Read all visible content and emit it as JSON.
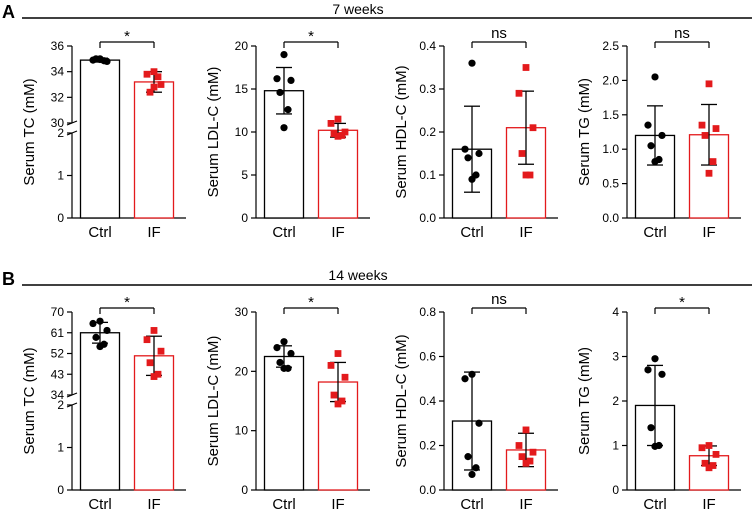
{
  "colors": {
    "ctrl": "#000000",
    "if": "#e31a1c",
    "axis": "#000000",
    "bar_fill": "#ffffff"
  },
  "panels": [
    {
      "letter": "A",
      "title": "7 weeks"
    },
    {
      "letter": "B",
      "title": "14 weeks"
    }
  ],
  "chart_data": [
    {
      "type": "bar",
      "panel": "A",
      "title": "Serum TC (7 weeks)",
      "ylabel": "Serum TC (mM)",
      "categories": [
        "Ctrl",
        "IF"
      ],
      "broken_axis": true,
      "lower_range": [
        0,
        2
      ],
      "lower_ticks": [
        0,
        1,
        2
      ],
      "upper_range": [
        30,
        36
      ],
      "upper_ticks": [
        30,
        32,
        34,
        36
      ],
      "means": [
        34.9,
        33.2
      ],
      "sd": [
        0.15,
        0.8
      ],
      "points": [
        [
          35.0,
          34.9,
          34.8,
          35.0,
          34.85,
          34.95
        ],
        [
          34.0,
          33.8,
          33.0,
          32.4,
          33.6,
          32.8
        ]
      ],
      "significance": "*"
    },
    {
      "type": "bar",
      "panel": "A",
      "title": "Serum LDL-C (7 weeks)",
      "ylabel": "Serum LDL-C (mM)",
      "categories": [
        "Ctrl",
        "IF"
      ],
      "ylim": [
        0,
        20
      ],
      "ticks": [
        0,
        5,
        10,
        15,
        20
      ],
      "means": [
        14.8,
        10.2
      ],
      "sd": [
        2.7,
        0.8
      ],
      "points": [
        [
          19.0,
          16.2,
          16.0,
          14.6,
          12.6,
          10.5
        ],
        [
          11.5,
          11.0,
          10.0,
          9.8,
          9.6,
          9.5
        ]
      ],
      "significance": "*"
    },
    {
      "type": "bar",
      "panel": "A",
      "title": "Serum HDL-C (7 weeks)",
      "ylabel": "Serum HDL-C (mM)",
      "categories": [
        "Ctrl",
        "IF"
      ],
      "ylim": [
        0,
        0.4
      ],
      "ticks": [
        0.0,
        0.1,
        0.2,
        0.3,
        0.4
      ],
      "means": [
        0.16,
        0.21
      ],
      "sd": [
        0.1,
        0.085
      ],
      "points": [
        [
          0.36,
          0.16,
          0.15,
          0.14,
          0.1,
          0.09
        ],
        [
          0.35,
          0.29,
          0.21,
          0.15,
          0.1,
          0.1
        ]
      ],
      "significance": "ns"
    },
    {
      "type": "bar",
      "panel": "A",
      "title": "Serum TG (7 weeks)",
      "ylabel": "Serum TG (mM)",
      "categories": [
        "Ctrl",
        "IF"
      ],
      "ylim": [
        0,
        2.5
      ],
      "ticks": [
        0.0,
        0.5,
        1.0,
        1.5,
        2.0,
        2.5
      ],
      "means": [
        1.2,
        1.21
      ],
      "sd": [
        0.43,
        0.44
      ],
      "points": [
        [
          2.05,
          1.35,
          1.2,
          1.05,
          0.85,
          0.82
        ],
        [
          1.95,
          1.35,
          1.3,
          1.2,
          0.82,
          0.65
        ]
      ],
      "significance": "ns"
    },
    {
      "type": "bar",
      "panel": "B",
      "title": "Serum TC (14 weeks)",
      "ylabel": "Serum TC (mM)",
      "categories": [
        "Ctrl",
        "IF"
      ],
      "broken_axis": true,
      "lower_range": [
        0,
        2
      ],
      "lower_ticks": [
        0,
        1,
        2
      ],
      "upper_range": [
        34,
        70
      ],
      "upper_ticks": [
        34,
        43,
        52,
        61,
        70
      ],
      "means": [
        61,
        51
      ],
      "sd": [
        4.5,
        8.5
      ],
      "points": [
        [
          66,
          65,
          62,
          59,
          56,
          55
        ],
        [
          62,
          58,
          53,
          48,
          43,
          42
        ]
      ],
      "significance": "*"
    },
    {
      "type": "bar",
      "panel": "B",
      "title": "Serum LDL-C (14 weeks)",
      "ylabel": "Serum LDL-C (mM)",
      "categories": [
        "Ctrl",
        "IF"
      ],
      "ylim": [
        0,
        30
      ],
      "ticks": [
        0,
        10,
        20,
        30
      ],
      "means": [
        22.5,
        18.2
      ],
      "sd": [
        1.8,
        3.3
      ],
      "points": [
        [
          25.0,
          24.0,
          23.0,
          21.5,
          20.5,
          20.5
        ],
        [
          23.0,
          21.0,
          19.0,
          16.0,
          15.0,
          14.5
        ]
      ],
      "significance": "*"
    },
    {
      "type": "bar",
      "panel": "B",
      "title": "Serum HDL-C (14 weeks)",
      "ylabel": "Serum HDL-C (mM)",
      "categories": [
        "Ctrl",
        "IF"
      ],
      "ylim": [
        0,
        0.8
      ],
      "ticks": [
        0.0,
        0.2,
        0.4,
        0.6,
        0.8
      ],
      "means": [
        0.31,
        0.18
      ],
      "sd": [
        0.22,
        0.075
      ],
      "points": [
        [
          0.52,
          0.5,
          0.3,
          0.15,
          0.1,
          0.07
        ],
        [
          0.27,
          0.2,
          0.17,
          0.15,
          0.13,
          0.12
        ]
      ],
      "significance": "ns"
    },
    {
      "type": "bar",
      "panel": "B",
      "title": "Serum TG (14 weeks)",
      "ylabel": "Serum TG (mM)",
      "categories": [
        "Ctrl",
        "IF"
      ],
      "ylim": [
        0,
        4
      ],
      "ticks": [
        0,
        1,
        2,
        3,
        4
      ],
      "means": [
        1.9,
        0.77
      ],
      "sd": [
        0.9,
        0.22
      ],
      "points": [
        [
          2.95,
          2.7,
          2.6,
          1.4,
          1.0,
          0.98
        ],
        [
          1.0,
          0.95,
          0.8,
          0.6,
          0.55,
          0.5
        ]
      ],
      "significance": "*"
    }
  ]
}
